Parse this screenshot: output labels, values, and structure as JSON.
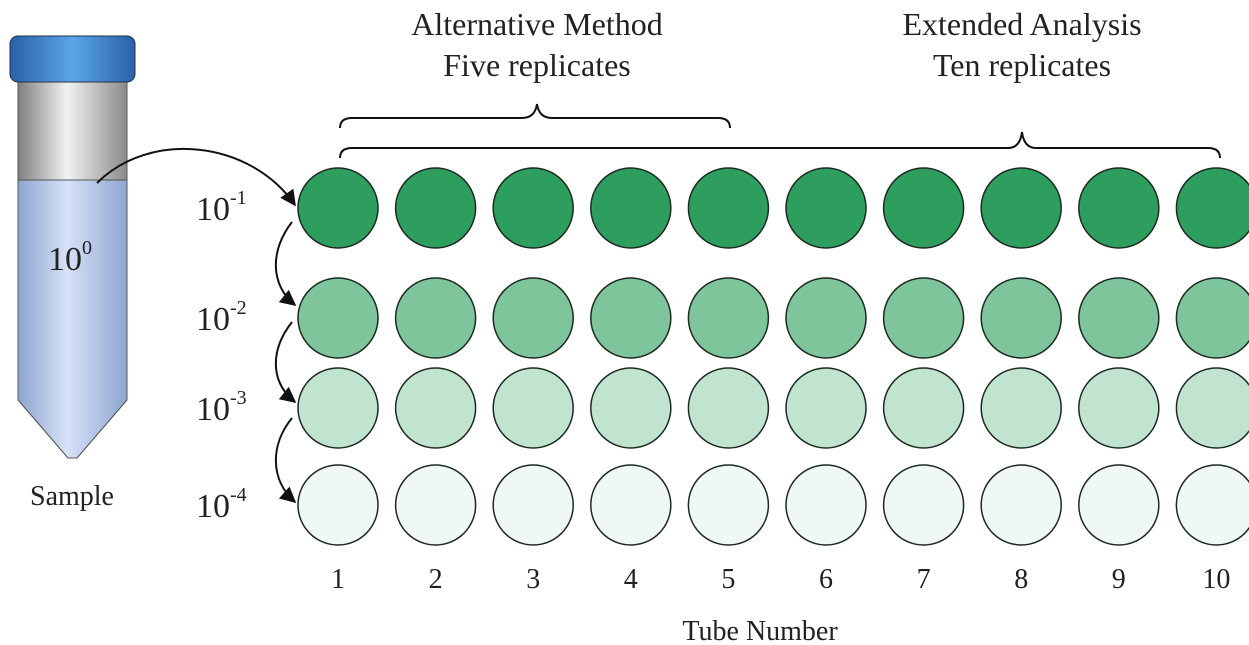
{
  "headers": [
    {
      "title": "Alternative Method",
      "subtitle": "Five replicates"
    },
    {
      "title": "Extended Analysis",
      "subtitle": "Ten replicates"
    }
  ],
  "sample": {
    "concentration": {
      "base": "10",
      "exponent": "0"
    },
    "label": "Sample"
  },
  "rows": [
    {
      "base": "10",
      "exponent": "-1"
    },
    {
      "base": "10",
      "exponent": "-2"
    },
    {
      "base": "10",
      "exponent": "-3"
    },
    {
      "base": "10",
      "exponent": "-4"
    }
  ],
  "columns": [
    1,
    2,
    3,
    4,
    5,
    6,
    7,
    8,
    9,
    10
  ],
  "x_axis_label": "Tube Number"
}
